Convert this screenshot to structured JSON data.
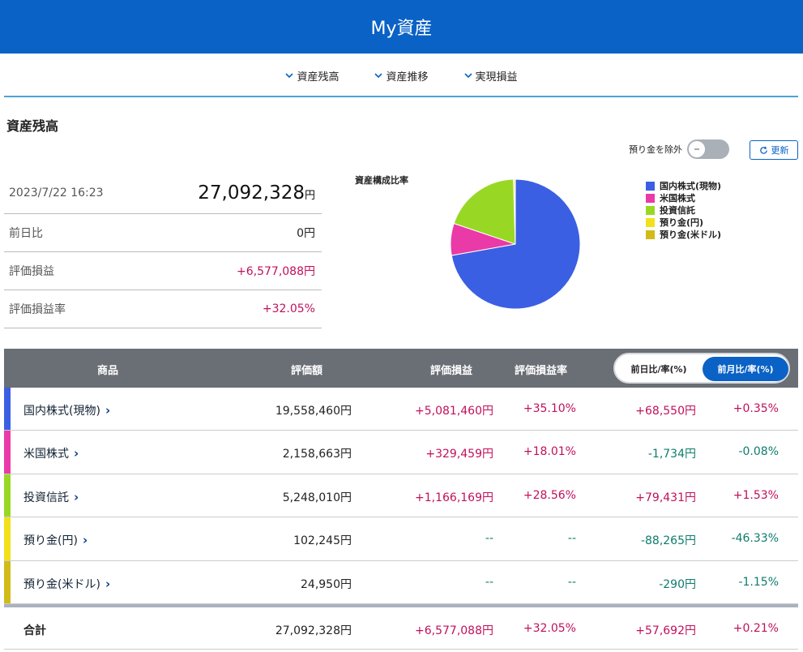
{
  "header": {
    "title": "My資産"
  },
  "tabs": [
    {
      "label": "資産残高"
    },
    {
      "label": "資産推移"
    },
    {
      "label": "実現損益"
    }
  ],
  "section": {
    "title": "資産残高"
  },
  "controls": {
    "exclude_deposit_label": "預り金を除外",
    "refresh_label": "更新"
  },
  "summary": {
    "datetime": "2023/7/22 16:23",
    "total_value": "27,092,328",
    "total_unit": "円",
    "rows": [
      {
        "label": "前日比",
        "value": "0円"
      },
      {
        "label": "評価損益",
        "value": "+6,577,088円"
      },
      {
        "label": "評価損益率",
        "value": "+32.05%"
      }
    ]
  },
  "chart_data": {
    "type": "pie",
    "title": "資産構成比率",
    "categories": [
      "国内株式(現物)",
      "米国株式",
      "投資信託",
      "預り金(円)",
      "預り金(米ドル)"
    ],
    "values": [
      19558460,
      2158663,
      5248010,
      102245,
      24950
    ],
    "colors": [
      "#3b5fe3",
      "#ea3aa7",
      "#98d824",
      "#f2e11a",
      "#d2bb18"
    ],
    "legend_position": "right"
  },
  "table": {
    "headers": {
      "product": "商品",
      "valuation": "評価額",
      "pl": "評価損益",
      "pl_rate": "評価損益率"
    },
    "toggle": {
      "daily": "前日比/率(%)",
      "monthly": "前月比/率(%)"
    },
    "rows": [
      {
        "name": "国内株式(現物)",
        "color": "#3b5fe3",
        "valuation": "19,558,460円",
        "pl": "+5,081,460円",
        "pl_rate": "+35.10%",
        "diff": "+68,550円",
        "diff_rate": "+0.35%"
      },
      {
        "name": "米国株式",
        "color": "#ea3aa7",
        "valuation": "2,158,663円",
        "pl": "+329,459円",
        "pl_rate": "+18.01%",
        "diff": "-1,734円",
        "diff_rate": "-0.08%"
      },
      {
        "name": "投資信託",
        "color": "#98d824",
        "valuation": "5,248,010円",
        "pl": "+1,166,169円",
        "pl_rate": "+28.56%",
        "diff": "+79,431円",
        "diff_rate": "+1.53%"
      },
      {
        "name": "預り金(円)",
        "color": "#f2e11a",
        "valuation": "102,245円",
        "pl": "--",
        "pl_rate": "--",
        "diff": "-88,265円",
        "diff_rate": "-46.33%"
      },
      {
        "name": "預り金(米ドル)",
        "color": "#d2bb18",
        "valuation": "24,950円",
        "pl": "--",
        "pl_rate": "--",
        "diff": "-290円",
        "diff_rate": "-1.15%"
      }
    ],
    "total": {
      "label": "合計",
      "valuation": "27,092,328円",
      "pl": "+6,577,088円",
      "pl_rate": "+32.05%",
      "diff": "+57,692円",
      "diff_rate": "+0.21%"
    }
  }
}
